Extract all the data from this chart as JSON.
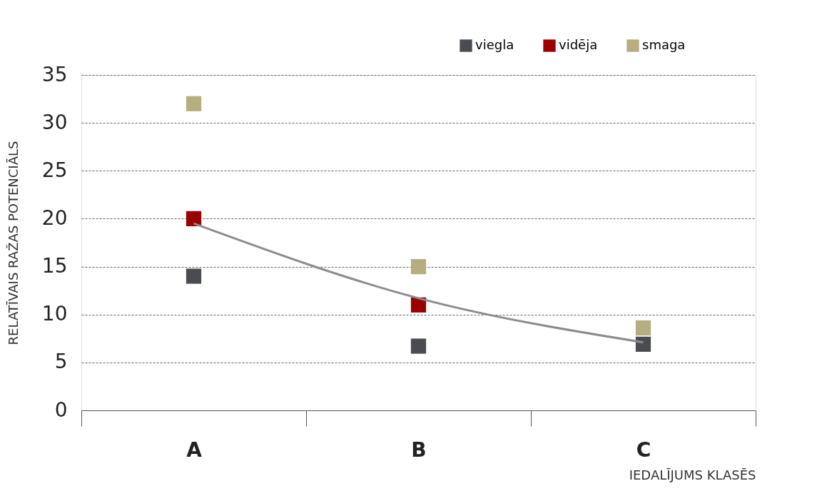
{
  "chart_data": {
    "type": "scatter",
    "xlabel": "IEDALĪJUMS KLASĒS",
    "ylabel": "RELATĪVAIS RAŽAS POTENCIĀLS",
    "categories": [
      "A",
      "B",
      "C"
    ],
    "series": [
      {
        "name": "viegla",
        "color": "#4a4c52",
        "values": [
          14,
          6.7,
          6.9
        ]
      },
      {
        "name": "vidēja",
        "color": "#9b0000",
        "values": [
          20,
          11,
          null
        ]
      },
      {
        "name": "smaga",
        "color": "#b5ae80",
        "values": [
          32,
          15,
          8.6
        ]
      },
      {
        "type": "line",
        "marker": "none",
        "color": "#8c8c8c",
        "x": [
          "A",
          "B",
          "C"
        ],
        "values": [
          19.5,
          11.7,
          7.1
        ]
      }
    ],
    "ylim": [
      0,
      35
    ],
    "yticks": [
      0,
      5,
      10,
      15,
      20,
      25,
      30,
      35
    ],
    "grid": "y",
    "legend": "top right",
    "marker": "square"
  }
}
